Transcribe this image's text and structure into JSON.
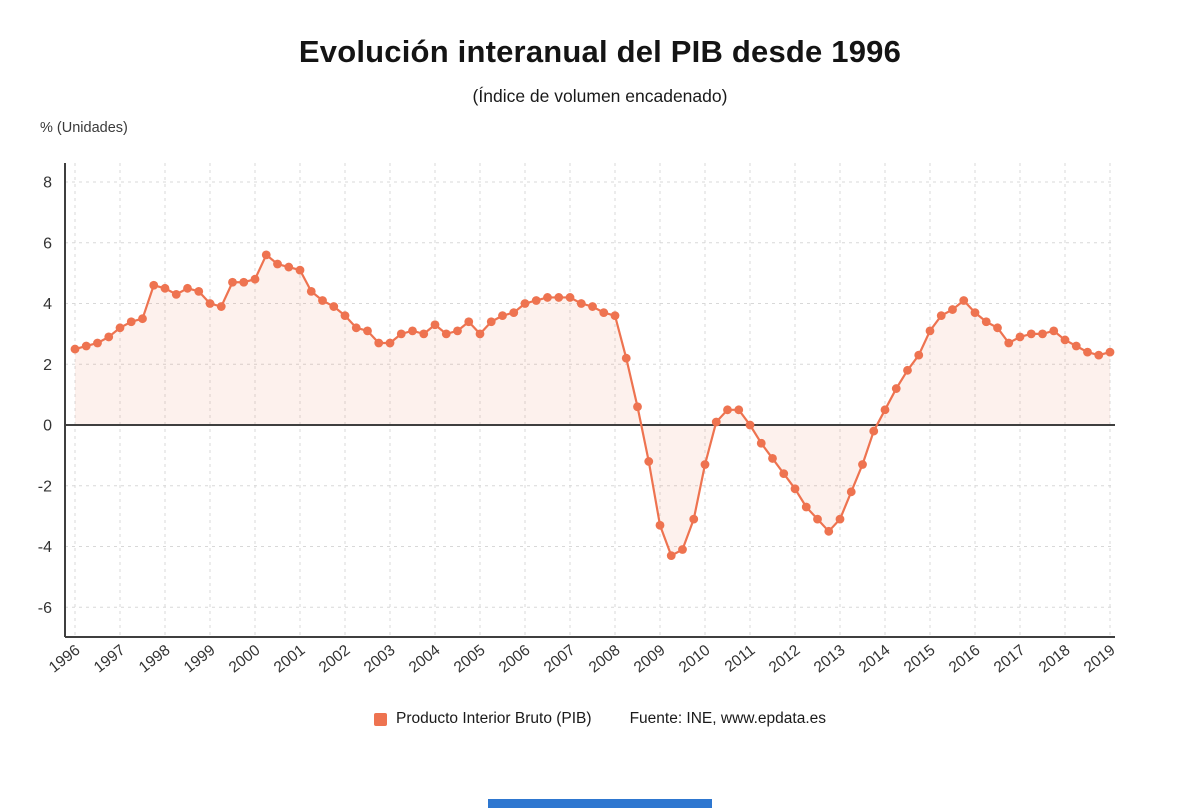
{
  "page": {
    "background": "#ffffff"
  },
  "chart_data": {
    "type": "line",
    "title": "Evolución interanual del PIB desde 1996",
    "subtitle": "(Índice de volumen encadenado)",
    "ylabel": "% (Unidades)",
    "line_color": "#ee7350",
    "area_color": "rgba(238,115,80,0.10)",
    "grid_color": "#d8d8d8",
    "axis_color": "#3f3f3f",
    "grid": true,
    "x_start_year": 1996,
    "points_per_year": 4,
    "x_tick_labels": [
      "1996",
      "1997",
      "1998",
      "1999",
      "2000",
      "2001",
      "2002",
      "2003",
      "2004",
      "2005",
      "2006",
      "2007",
      "2008",
      "2009",
      "2010",
      "2011",
      "2012",
      "2013",
      "2014",
      "2015",
      "2016",
      "2017",
      "2018",
      "2019"
    ],
    "y_ticks": [
      8,
      6,
      4,
      2,
      0,
      -2,
      -4,
      -6
    ],
    "ylim": [
      -7,
      9
    ],
    "series": [
      {
        "name": "Producto Interior Bruto (PIB)",
        "values": [
          2.5,
          2.6,
          2.7,
          2.9,
          3.2,
          3.4,
          3.5,
          4.6,
          4.5,
          4.3,
          4.5,
          4.4,
          4.0,
          3.9,
          4.7,
          4.7,
          4.8,
          5.6,
          5.3,
          5.2,
          5.1,
          4.4,
          4.1,
          3.9,
          3.6,
          3.2,
          3.1,
          2.7,
          2.7,
          3.0,
          3.1,
          3.0,
          3.3,
          3.0,
          3.1,
          3.4,
          3.0,
          3.4,
          3.6,
          3.7,
          4.0,
          4.1,
          4.2,
          4.2,
          4.2,
          4.0,
          3.9,
          3.7,
          3.6,
          2.2,
          0.6,
          -1.2,
          -3.3,
          -4.3,
          -4.1,
          -3.1,
          -1.3,
          0.1,
          0.5,
          0.5,
          0.0,
          -0.6,
          -1.1,
          -1.6,
          -2.1,
          -2.7,
          -3.1,
          -3.5,
          -3.1,
          -2.2,
          -1.3,
          -0.2,
          0.5,
          1.2,
          1.8,
          2.3,
          3.1,
          3.6,
          3.8,
          4.1,
          3.7,
          3.4,
          3.2,
          2.7,
          2.9,
          3.0,
          3.0,
          3.1,
          2.8,
          2.6,
          2.4,
          2.3,
          2.4
        ]
      }
    ],
    "legend": {
      "series_label": "Producto Interior Bruto (PIB)",
      "source": "Fuente: INE, www.epdata.es",
      "position": "bottom-center"
    }
  },
  "footer": {
    "bar_color": "#2e77d0"
  }
}
